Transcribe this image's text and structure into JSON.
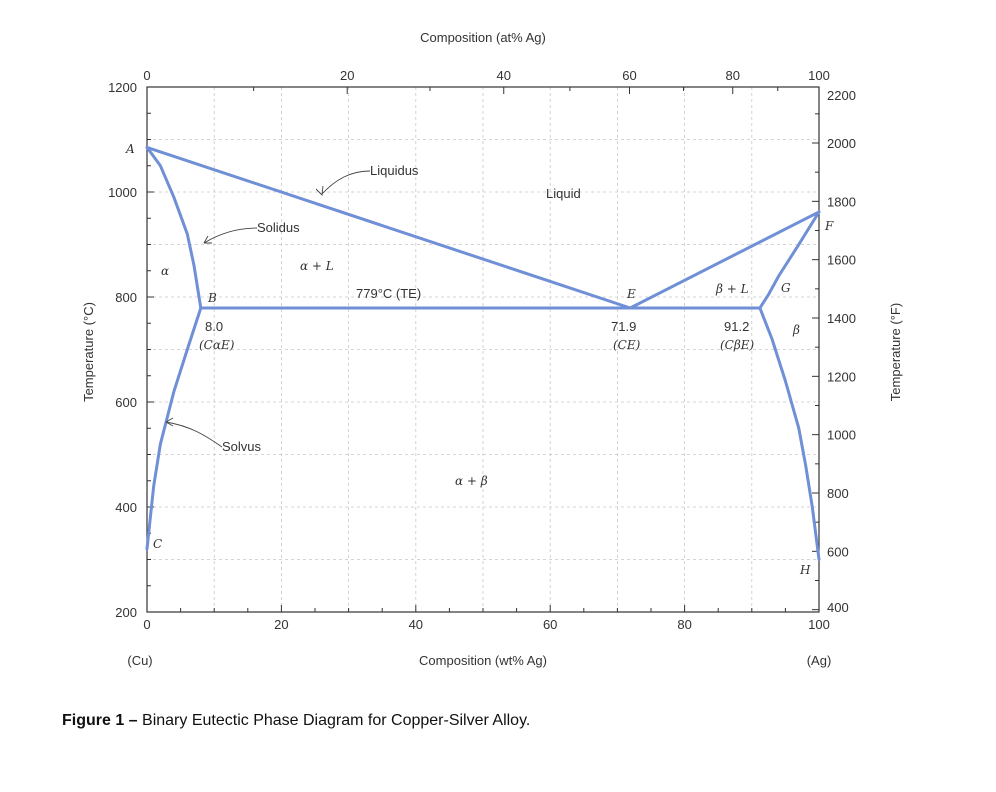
{
  "chart_data": {
    "type": "line",
    "title": "",
    "axes": {
      "bottom": {
        "label": "Composition (wt% Ag)",
        "range": [
          0,
          100
        ],
        "ticks": [
          0,
          20,
          40,
          60,
          80,
          100
        ],
        "tick_labels": [
          "0",
          "20",
          "40",
          "60",
          "80",
          "100"
        ]
      },
      "top": {
        "label": "Composition (at% Ag)",
        "tick_labels": [
          "0",
          "20",
          "40",
          "60",
          "80",
          "100"
        ]
      },
      "left": {
        "label": "Temperature (°C)",
        "range": [
          200,
          1200
        ],
        "ticks": [
          200,
          400,
          600,
          800,
          1000,
          1200
        ],
        "tick_labels": [
          "200",
          "400",
          "600",
          "800",
          "1000",
          "1200"
        ]
      },
      "right": {
        "label": "Temperature (°F)",
        "tick_labels": [
          "400",
          "600",
          "800",
          "1000",
          "1200",
          "1400",
          "1600",
          "1800",
          "2000",
          "2200"
        ]
      },
      "grid": true,
      "end_labels": {
        "left": "(Cu)",
        "right": "(Ag)"
      }
    },
    "series": [
      {
        "x": [
          0,
          71.9,
          100
        ],
        "y": [
          1085,
          779,
          962
        ]
      },
      {
        "x": [
          0,
          2,
          4,
          6,
          7,
          8.0
        ],
        "y": [
          1085,
          1050,
          990,
          920,
          860,
          779
        ]
      },
      {
        "x": [
          100,
          97,
          94,
          92.5,
          91.2
        ],
        "y": [
          962,
          900,
          840,
          805,
          779
        ]
      },
      {
        "x": [
          8.0,
          91.2
        ],
        "y": [
          779,
          779
        ]
      },
      {
        "x": [
          8.0,
          6,
          4,
          2,
          1,
          0
        ],
        "y": [
          779,
          700,
          620,
          520,
          440,
          320
        ]
      },
      {
        "x": [
          91.2,
          93,
          95,
          97,
          98,
          99,
          100
        ],
        "y": [
          779,
          720,
          640,
          550,
          480,
          400,
          300
        ]
      }
    ],
    "annotations": {
      "points": [
        "A",
        "B",
        "C",
        "E",
        "F",
        "G",
        "H"
      ],
      "regions": [
        "α",
        "α + L",
        "Liquid",
        "β + L",
        "β",
        "α + β"
      ],
      "lines": [
        "Liquidus",
        "Solidus",
        "Solvus"
      ],
      "eutectic": "779°C (TE)",
      "values": [
        {
          "value": "8.0",
          "sub": "(CαE)"
        },
        {
          "value": "71.9",
          "sub": "(CE)"
        },
        {
          "value": "91.2",
          "sub": "(CβE)"
        }
      ]
    }
  },
  "caption": {
    "prefix": "Figure 1 – ",
    "text": "Binary Eutectic Phase Diagram for Copper-Silver Alloy."
  }
}
